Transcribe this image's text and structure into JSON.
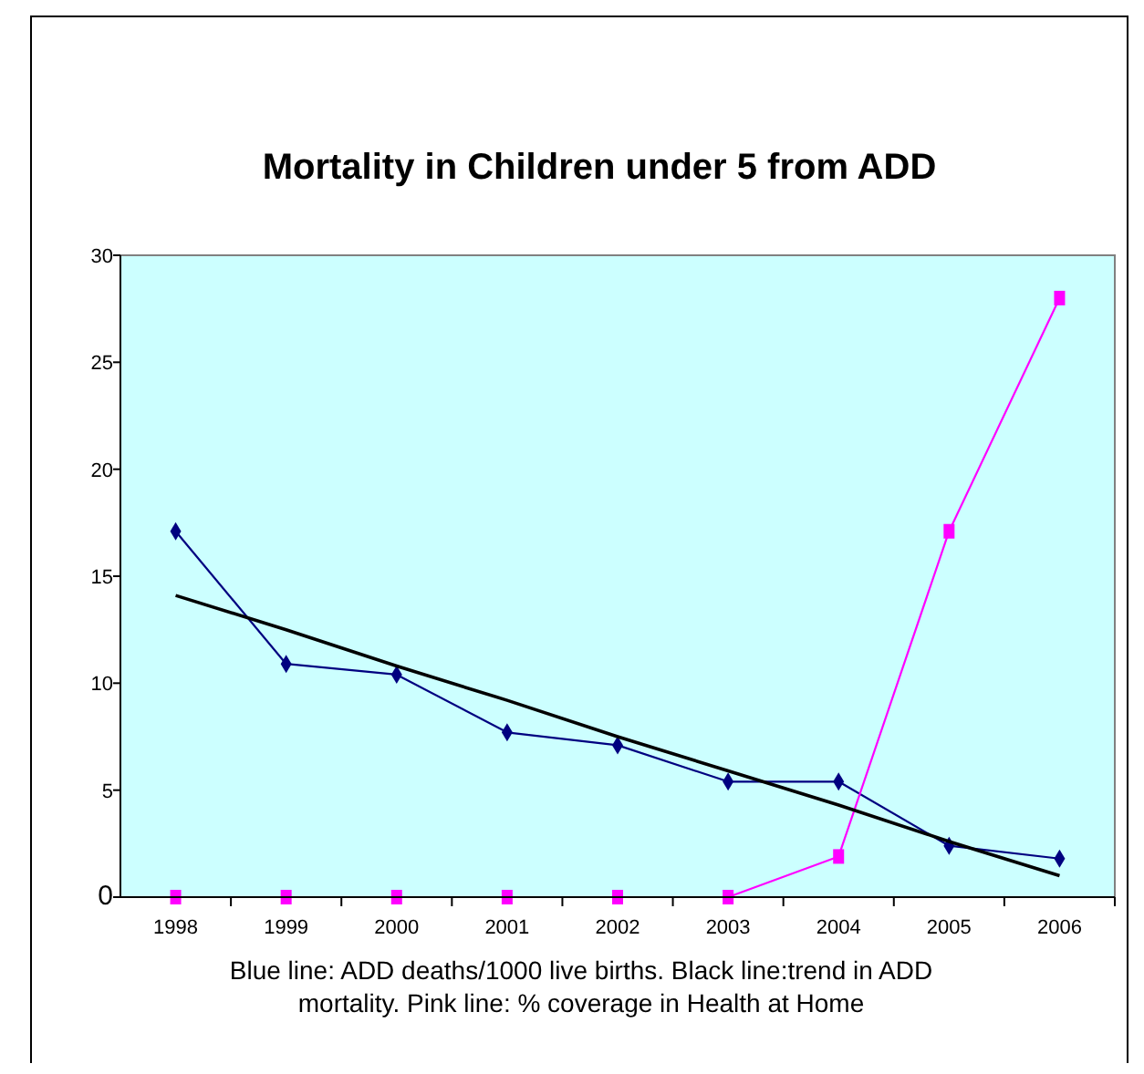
{
  "chart_data": {
    "type": "line",
    "title": "Mortality in Children under 5 from ADD",
    "categories": [
      "1998",
      "1999",
      "2000",
      "2001",
      "2002",
      "2003",
      "2004",
      "2005",
      "2006"
    ],
    "series": [
      {
        "color": "#000080",
        "marker": "diamond",
        "values": [
          17.1,
          10.9,
          10.4,
          7.7,
          7.1,
          5.4,
          5.4,
          2.4,
          1.8
        ]
      },
      {
        "color": "#ff00ff",
        "marker": "square",
        "values": [
          0,
          0,
          0,
          0,
          0,
          0,
          1.9,
          17.1,
          28.0
        ]
      },
      {
        "type": "line",
        "color": "#000000",
        "marker": "none",
        "values": [
          14.1,
          12.5,
          10.8,
          9.2,
          7.5,
          5.9,
          4.3,
          2.6,
          1.0
        ]
      }
    ],
    "ylim": [
      0,
      30
    ],
    "yticks": [
      0,
      5,
      10,
      15,
      20,
      25,
      30
    ],
    "grid": false,
    "annotations": [
      "Blue line: ADD deaths/1000 live births. Black line:trend in ADD mortality. Pink line: % coverage in Health at Home"
    ]
  }
}
